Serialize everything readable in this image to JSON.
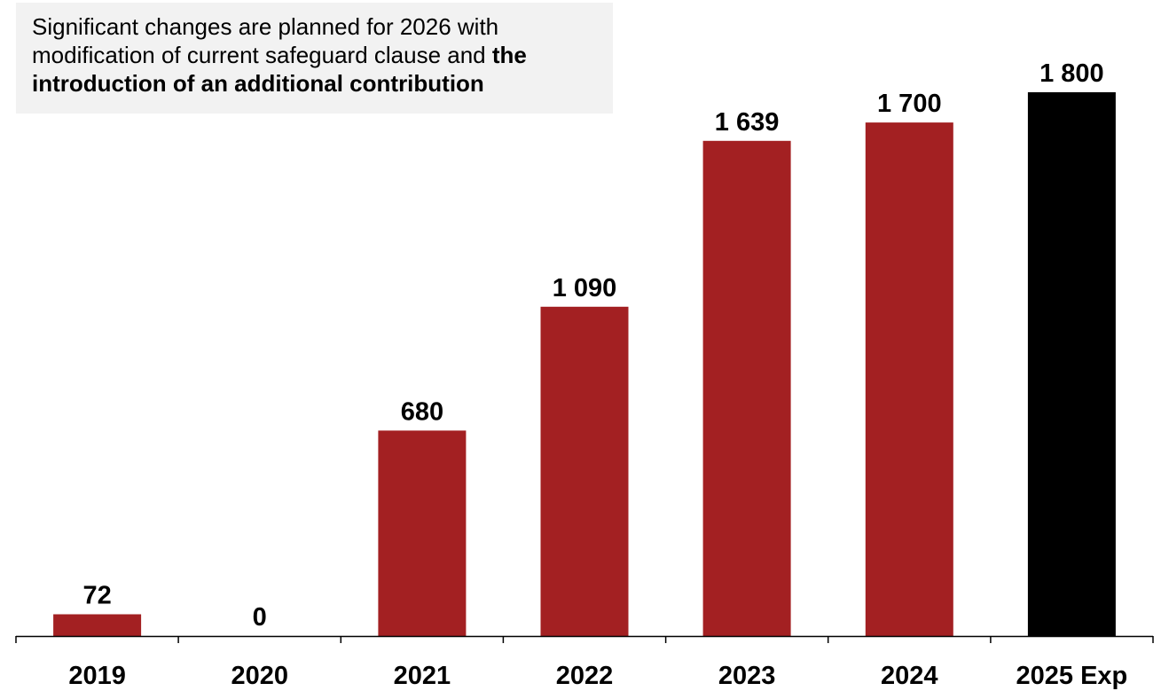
{
  "annotation": {
    "normal_text": "Significant changes are planned for 2026 with modification of current safeguard clause and ",
    "bold_text": "the introduction of an additional contribution"
  },
  "colors": {
    "actual_bar": "#a32022",
    "expected_bar": "#000000",
    "axis": "#000000",
    "annotation_bg": "#f2f2f2"
  },
  "chart_data": {
    "type": "bar",
    "categories": [
      "2019",
      "2020",
      "2021",
      "2022",
      "2023",
      "2024",
      "2025 Exp"
    ],
    "values": [
      72,
      0,
      680,
      1090,
      1639,
      1700,
      1800
    ],
    "value_labels": [
      "72",
      "0",
      "680",
      "1 090",
      "1 639",
      "1 700",
      "1 800"
    ],
    "title": "",
    "xlabel": "",
    "ylabel": "",
    "ylim": [
      0,
      1800
    ],
    "grid": false,
    "legend": "none",
    "expected_category": "2025 Exp"
  }
}
